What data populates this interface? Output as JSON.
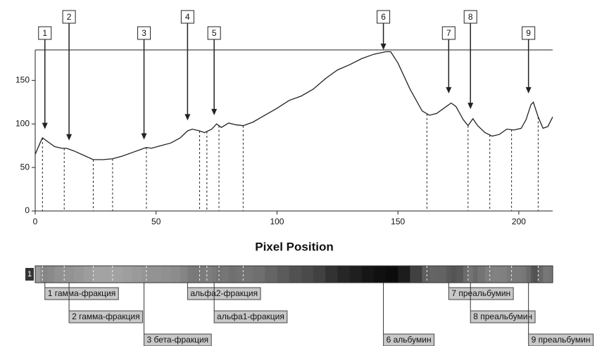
{
  "chart_data": {
    "type": "line",
    "xlabel": "Pixel Position",
    "x": [
      0,
      2,
      3,
      5,
      8,
      11,
      13,
      16,
      20,
      24,
      28,
      32,
      36,
      40,
      44,
      46,
      48,
      52,
      56,
      60,
      63,
      65,
      68,
      70,
      73,
      75,
      77,
      80,
      83,
      86,
      90,
      95,
      100,
      105,
      110,
      115,
      120,
      125,
      130,
      135,
      140,
      145,
      147,
      150,
      155,
      160,
      163,
      166,
      170,
      172,
      174,
      177,
      179,
      181,
      183,
      186,
      189,
      192,
      195,
      198,
      201,
      203,
      205,
      206,
      208,
      210,
      212,
      214
    ],
    "series": [
      {
        "color": "#222222",
        "values": [
          65,
          78,
          84,
          80,
          74,
          72,
          72,
          69,
          64,
          59,
          59,
          60,
          63,
          67,
          71,
          73,
          72,
          75,
          78,
          84,
          92,
          94,
          92,
          90,
          94,
          100,
          96,
          101,
          99,
          98,
          102,
          110,
          118,
          127,
          132,
          140,
          152,
          162,
          168,
          175,
          180,
          183,
          183,
          170,
          140,
          115,
          110,
          112,
          120,
          124,
          120,
          105,
          98,
          106,
          98,
          90,
          86,
          88,
          94,
          93,
          95,
          105,
          122,
          125,
          108,
          95,
          97,
          108
        ]
      }
    ],
    "xlim": [
      0,
      214
    ],
    "ylim": [
      0,
      185
    ],
    "xticks": [
      0,
      50,
      100,
      150,
      200
    ],
    "yticks": [
      0,
      50,
      100,
      150
    ],
    "boundaries": [
      3,
      12,
      24,
      32,
      46,
      68,
      71,
      76,
      86,
      162,
      179,
      188,
      197,
      208
    ],
    "strip_label": "1",
    "peaks": [
      {
        "label": "1",
        "x": 4,
        "y": 94,
        "fraction": "1 гамма-фракция"
      },
      {
        "label": "2",
        "x": 14,
        "y": 81,
        "fraction": "2 гамма-фракция"
      },
      {
        "label": "3",
        "x": 45,
        "y": 82,
        "fraction": "3 бета-фракция"
      },
      {
        "label": "4",
        "x": 63,
        "y": 104,
        "fraction": "альфа2-фракция"
      },
      {
        "label": "5",
        "x": 74,
        "y": 110,
        "fraction": "альфа1-фракция"
      },
      {
        "label": "6",
        "x": 144,
        "y": 185,
        "fraction": "6 альбумин"
      },
      {
        "label": "7",
        "x": 171,
        "y": 135,
        "fraction": "7 преальбумин"
      },
      {
        "label": "8",
        "x": 180,
        "y": 117,
        "fraction": "8 преальбумин"
      },
      {
        "label": "9",
        "x": 204,
        "y": 135,
        "fraction": "9 преальбумин"
      }
    ]
  }
}
